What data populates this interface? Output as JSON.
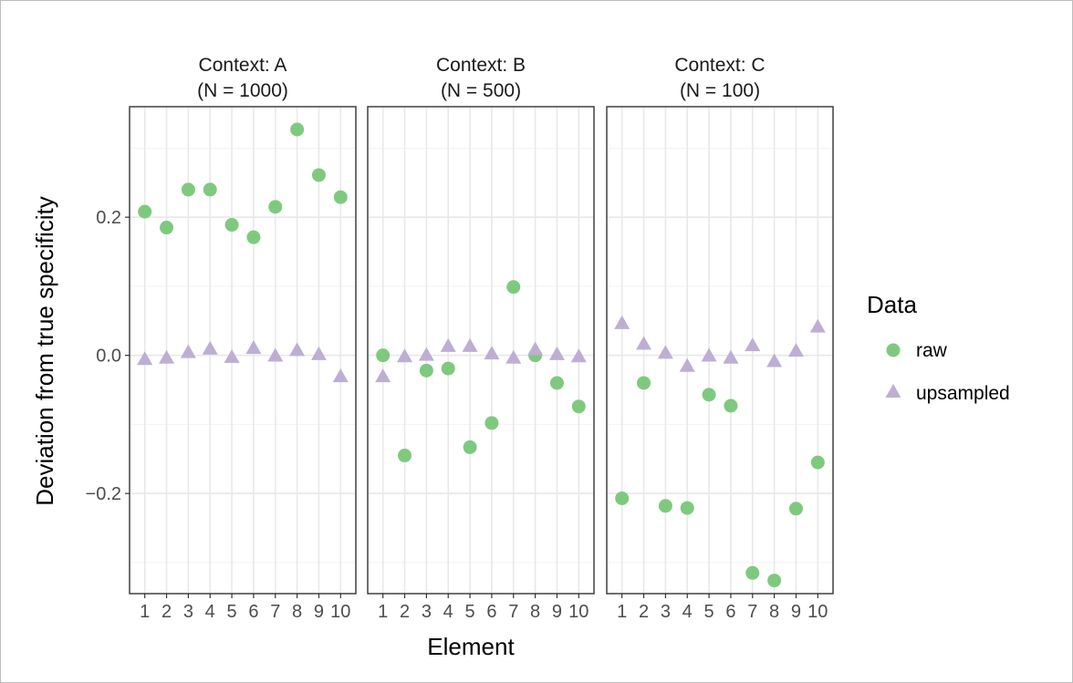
{
  "chart_data": {
    "type": "scatter",
    "facet_var": "Context",
    "xlabel": "Element",
    "ylabel": "Deviation from true specificity",
    "x_categories": [
      "1",
      "2",
      "3",
      "4",
      "5",
      "6",
      "7",
      "8",
      "9",
      "10"
    ],
    "ylim": [
      -0.345,
      0.36
    ],
    "y_ticks": [
      -0.2,
      0.0,
      0.2
    ],
    "y_tick_labels": [
      "−0.2",
      "0.0",
      "0.2"
    ],
    "grid": true,
    "legend": {
      "title": "Data",
      "position": "right",
      "entries": [
        {
          "label": "raw",
          "shape": "circle",
          "color": "#7fc97f"
        },
        {
          "label": "upsampled",
          "shape": "triangle",
          "color": "#beaed4"
        }
      ]
    },
    "panels": [
      {
        "title_line1": "Context: A",
        "title_line2": "(N = 1000)",
        "series": [
          {
            "name": "raw",
            "values": [
              0.208,
              0.185,
              0.24,
              0.24,
              0.189,
              0.171,
              0.215,
              0.327,
              0.261,
              0.229
            ]
          },
          {
            "name": "upsampled",
            "values": [
              -0.006,
              -0.004,
              0.004,
              0.009,
              -0.003,
              0.01,
              -0.001,
              0.007,
              0.001,
              -0.031
            ]
          }
        ]
      },
      {
        "title_line1": "Context: B",
        "title_line2": "(N = 500)",
        "series": [
          {
            "name": "raw",
            "values": [
              0.0,
              -0.145,
              -0.022,
              -0.019,
              -0.133,
              -0.098,
              0.099,
              0.0,
              -0.04,
              -0.074
            ]
          },
          {
            "name": "upsampled",
            "values": [
              -0.031,
              -0.002,
              0.0,
              0.013,
              0.013,
              0.002,
              -0.004,
              0.008,
              0.001,
              -0.002
            ]
          }
        ]
      },
      {
        "title_line1": "Context: C",
        "title_line2": "(N = 100)",
        "series": [
          {
            "name": "raw",
            "values": [
              -0.207,
              -0.04,
              -0.218,
              -0.221,
              -0.057,
              -0.073,
              -0.315,
              -0.326,
              -0.222,
              -0.155
            ]
          },
          {
            "name": "upsampled",
            "values": [
              0.046,
              0.016,
              0.003,
              -0.016,
              -0.001,
              -0.004,
              0.014,
              -0.009,
              0.006,
              0.041
            ]
          }
        ]
      }
    ]
  }
}
